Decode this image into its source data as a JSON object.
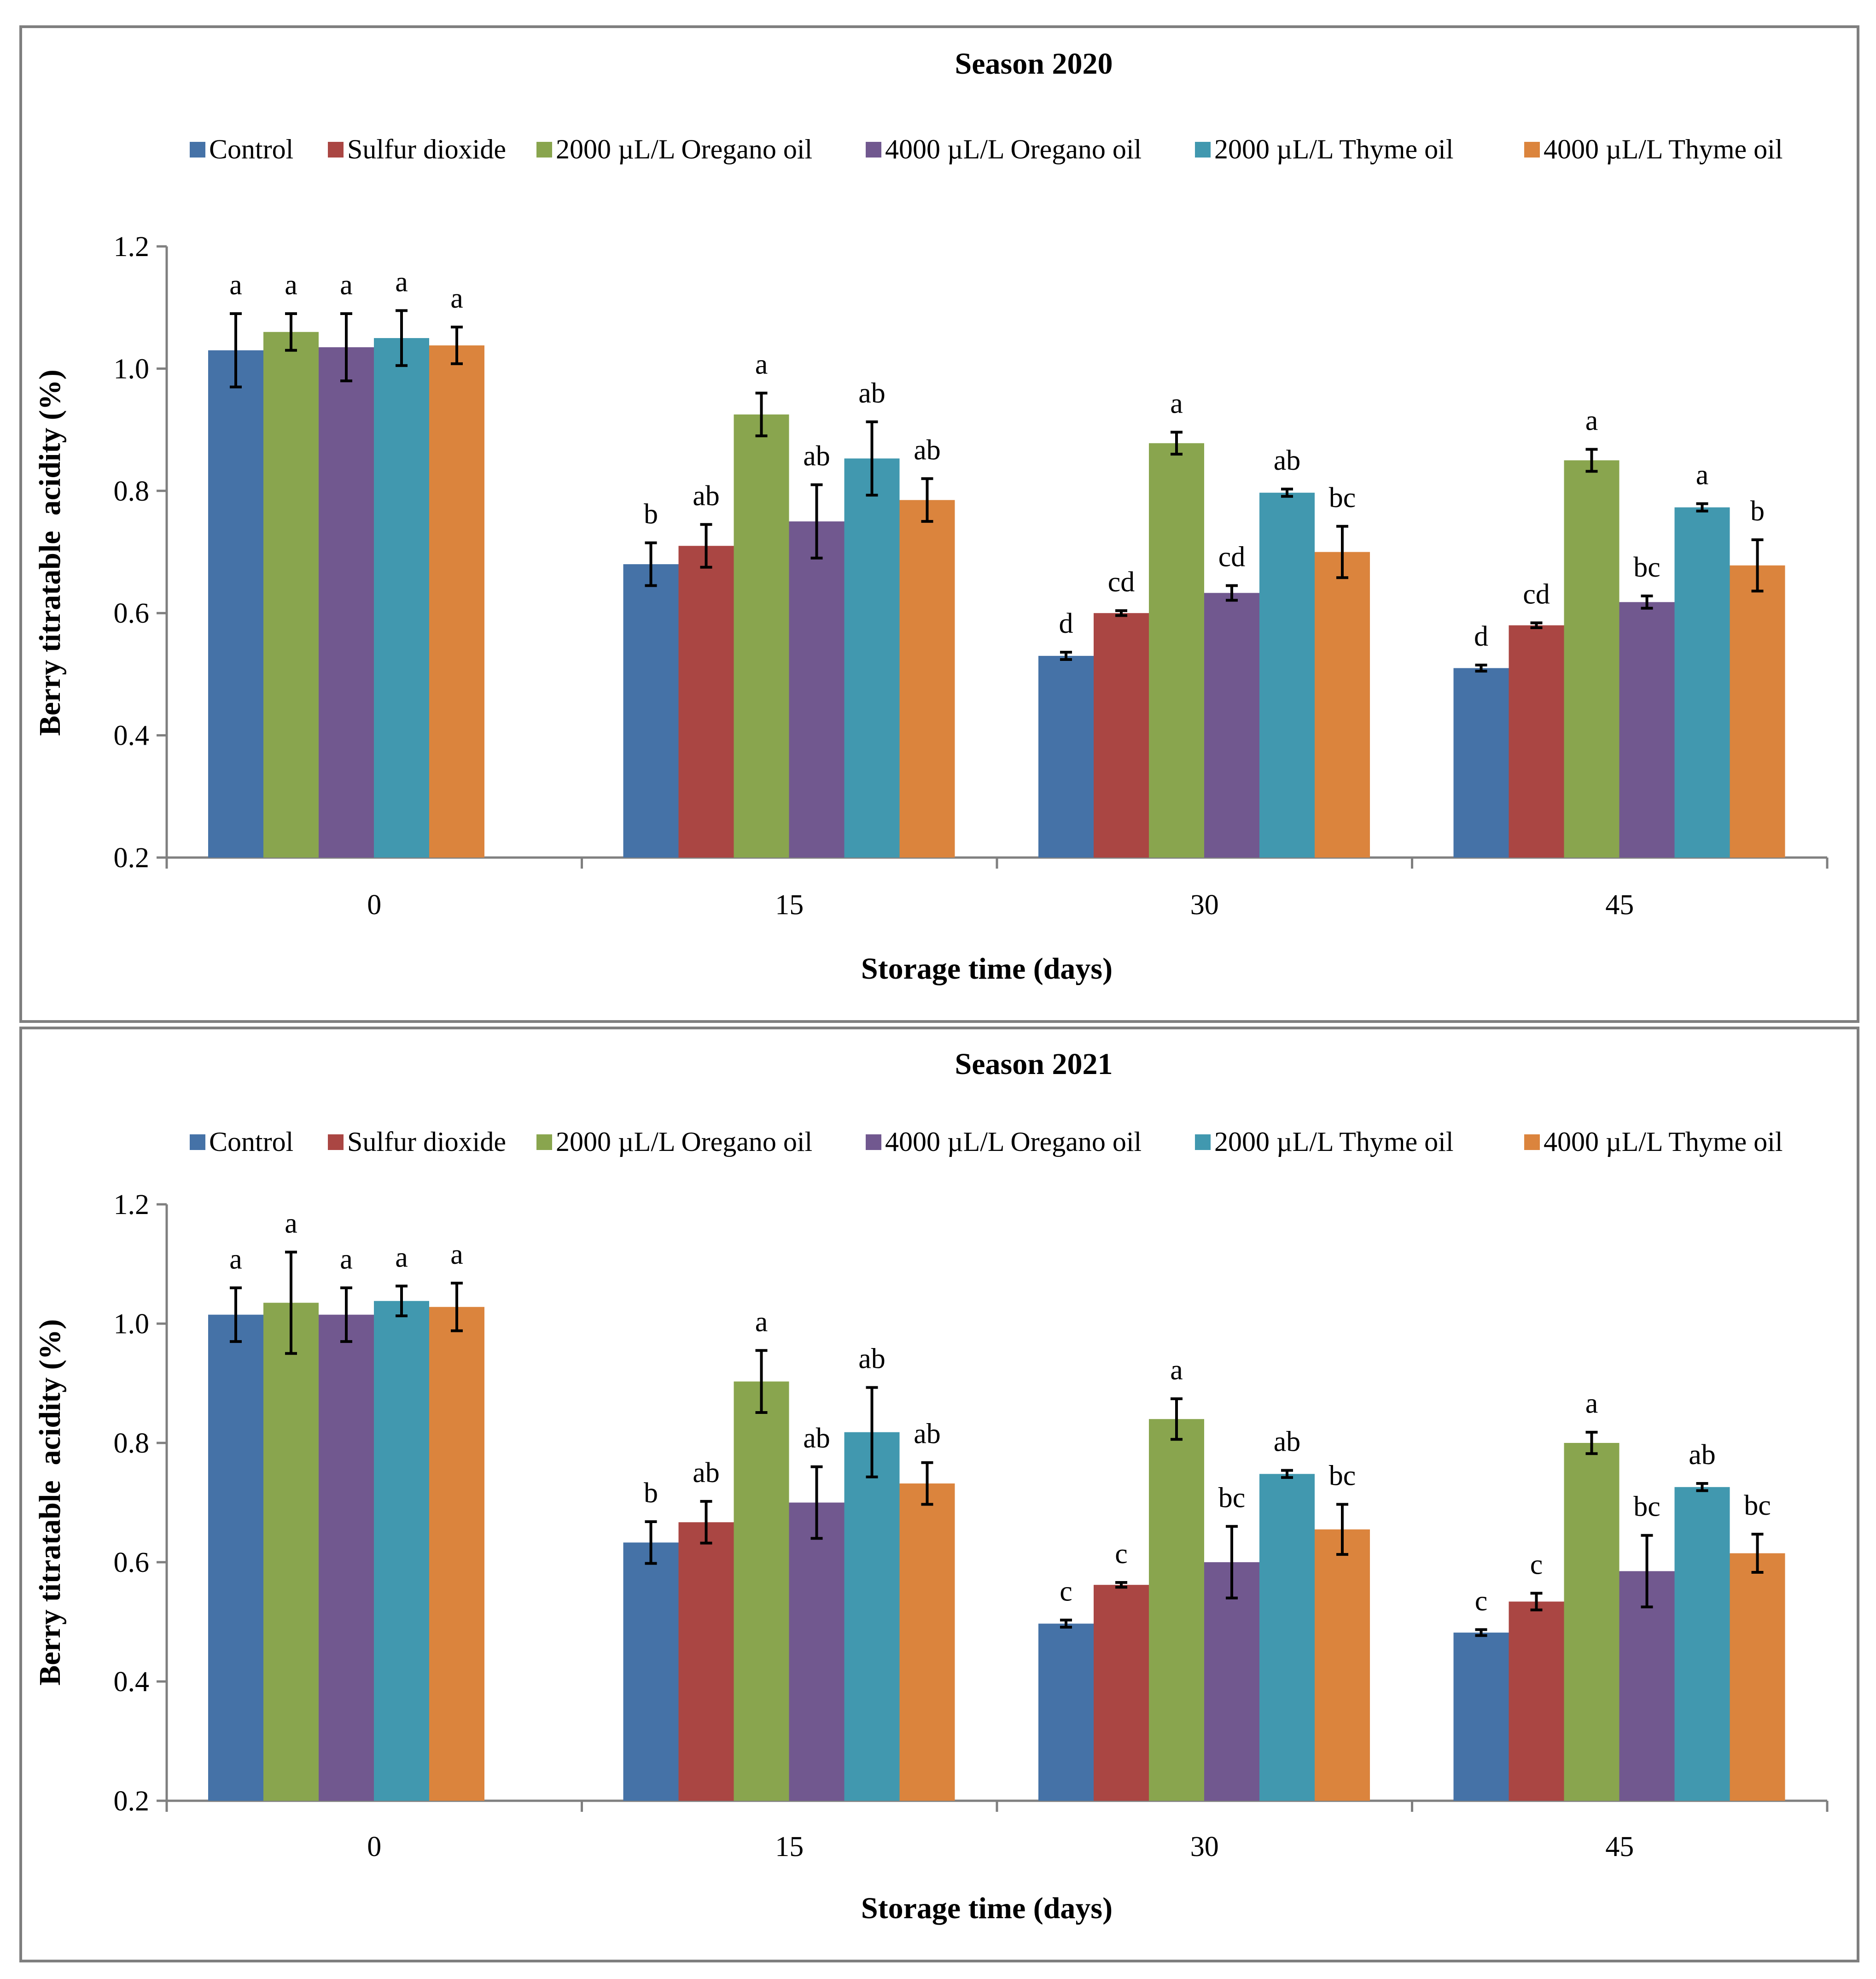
{
  "chart_data": [
    {
      "type": "bar",
      "title": "Season 2020",
      "xlabel": "Storage time (days)",
      "ylabel": "Berry titratable  acidity (%)",
      "categories": [
        "0",
        "15",
        "30",
        "45"
      ],
      "ylim": [
        0.2,
        1.2
      ],
      "yticks": [
        "0.2",
        "0.4",
        "0.6",
        "0.8",
        "1.0",
        "1.2"
      ],
      "legend_position": "top",
      "series": [
        {
          "name": "Control",
          "color": "#4572a7",
          "values": [
            1.03,
            0.68,
            0.53,
            0.51
          ],
          "errors": [
            0.06,
            0.035,
            0.006,
            0.005
          ],
          "labels": [
            "a",
            "b",
            "d",
            "d"
          ]
        },
        {
          "name": "Sulfur dioxide",
          "color": "#aa4643",
          "values": [
            null,
            0.71,
            0.6,
            0.58
          ],
          "errors": [
            null,
            0.035,
            0.004,
            0.004
          ],
          "labels": [
            "",
            "ab",
            "cd",
            "cd"
          ]
        },
        {
          "name": "2000 µL/L Oregano oil",
          "color": "#89a54e",
          "values": [
            1.06,
            0.925,
            0.878,
            0.85
          ],
          "errors": [
            0.03,
            0.035,
            0.018,
            0.018
          ],
          "labels": [
            "a",
            "a",
            "a",
            "a"
          ]
        },
        {
          "name": "4000 µL/L Oregano oil",
          "color": "#71588f",
          "values": [
            1.035,
            0.75,
            0.633,
            0.618
          ],
          "errors": [
            0.055,
            0.06,
            0.012,
            0.01
          ],
          "labels": [
            "a",
            "ab",
            "cd",
            "bc"
          ]
        },
        {
          "name": "2000 µL/L Thyme oil",
          "color": "#4198af",
          "values": [
            1.05,
            0.853,
            0.797,
            0.773
          ],
          "errors": [
            0.045,
            0.06,
            0.006,
            0.006
          ],
          "labels": [
            "a",
            "ab",
            "ab",
            "a"
          ]
        },
        {
          "name": "4000 µL/L Thyme oil",
          "color": "#db843d",
          "values": [
            1.038,
            0.785,
            0.7,
            0.678
          ],
          "errors": [
            0.03,
            0.035,
            0.042,
            0.042
          ],
          "labels": [
            "a",
            "ab",
            "bc",
            "b"
          ]
        }
      ]
    },
    {
      "type": "bar",
      "title": "Season 2021",
      "xlabel": "Storage time (days)",
      "ylabel": "Berry titratable  acidity (%)",
      "categories": [
        "0",
        "15",
        "30",
        "45"
      ],
      "ylim": [
        0.2,
        1.2
      ],
      "yticks": [
        "0.2",
        "0.4",
        "0.6",
        "0.8",
        "1.0",
        "1.2"
      ],
      "legend_position": "top",
      "series": [
        {
          "name": "Control",
          "color": "#4572a7",
          "values": [
            1.015,
            0.633,
            0.497,
            0.482
          ],
          "errors": [
            0.045,
            0.035,
            0.006,
            0.005
          ],
          "labels": [
            "a",
            "b",
            "c",
            "c"
          ]
        },
        {
          "name": "Sulfur dioxide",
          "color": "#aa4643",
          "values": [
            null,
            0.667,
            0.562,
            0.534
          ],
          "errors": [
            null,
            0.035,
            0.004,
            0.014
          ],
          "labels": [
            "",
            "ab",
            "c",
            "c"
          ]
        },
        {
          "name": "2000 µL/L Oregano oil",
          "color": "#89a54e",
          "values": [
            1.035,
            0.903,
            0.84,
            0.8
          ],
          "errors": [
            0.085,
            0.052,
            0.034,
            0.018
          ],
          "labels": [
            "a",
            "a",
            "a",
            "a"
          ]
        },
        {
          "name": "4000 µL/L Oregano oil",
          "color": "#71588f",
          "values": [
            1.015,
            0.7,
            0.6,
            0.585
          ],
          "errors": [
            0.045,
            0.06,
            0.06,
            0.06
          ],
          "labels": [
            "a",
            "ab",
            "bc",
            "bc"
          ]
        },
        {
          "name": "2000 µL/L Thyme oil",
          "color": "#4198af",
          "values": [
            1.038,
            0.818,
            0.748,
            0.726
          ],
          "errors": [
            0.025,
            0.075,
            0.006,
            0.006
          ],
          "labels": [
            "a",
            "ab",
            "ab",
            "ab"
          ]
        },
        {
          "name": "4000 µL/L Thyme oil",
          "color": "#db843d",
          "values": [
            1.028,
            0.732,
            0.655,
            0.615
          ],
          "errors": [
            0.04,
            0.035,
            0.042,
            0.032
          ],
          "labels": [
            "a",
            "ab",
            "bc",
            "bc"
          ]
        }
      ]
    }
  ]
}
